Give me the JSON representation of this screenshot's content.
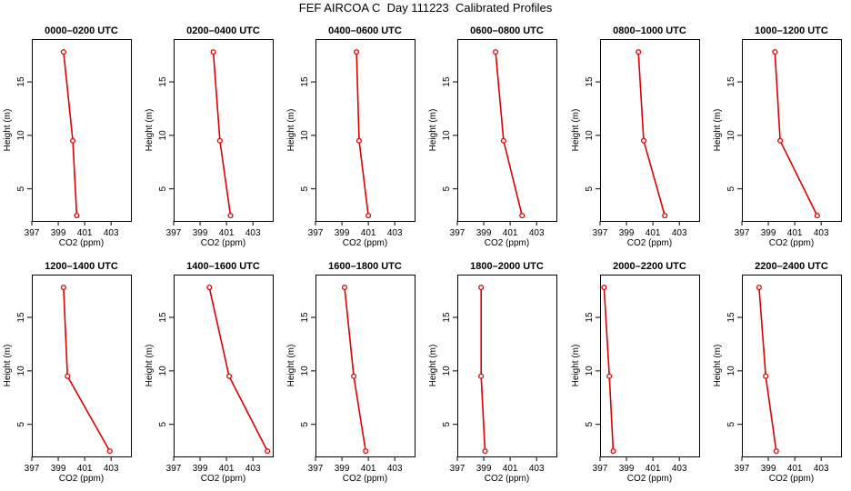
{
  "title": "FEF AIRCOA C  Day 111223  Calibrated Profiles",
  "colors": {
    "profile": "#dd0000",
    "axis": "#000000"
  },
  "chart_data": [
    {
      "type": "line",
      "title": "0000–0200 UTC",
      "xlabel": "CO2 (ppm)",
      "ylabel": "Height (m)",
      "xlim": [
        397,
        404.5
      ],
      "ylim": [
        2,
        19
      ],
      "xticks": [
        397,
        399,
        401,
        403
      ],
      "yticks": [
        5,
        10,
        15
      ],
      "series": [
        {
          "x": [
            400.4,
            400.1,
            399.4
          ],
          "y": [
            2.5,
            9.5,
            17.8
          ]
        }
      ]
    },
    {
      "type": "line",
      "title": "0200–0400 UTC",
      "xlabel": "CO2 (ppm)",
      "ylabel": "Height (m)",
      "xlim": [
        397,
        404.5
      ],
      "ylim": [
        2,
        19
      ],
      "xticks": [
        397,
        399,
        401,
        403
      ],
      "yticks": [
        5,
        10,
        15
      ],
      "series": [
        {
          "x": [
            401.3,
            400.5,
            400.0
          ],
          "y": [
            2.5,
            9.5,
            17.8
          ]
        }
      ]
    },
    {
      "type": "line",
      "title": "0400–0600 UTC",
      "xlabel": "CO2 (ppm)",
      "ylabel": "Height (m)",
      "xlim": [
        397,
        404.5
      ],
      "ylim": [
        2,
        19
      ],
      "xticks": [
        397,
        399,
        401,
        403
      ],
      "yticks": [
        5,
        10,
        15
      ],
      "series": [
        {
          "x": [
            401.0,
            400.3,
            400.1
          ],
          "y": [
            2.5,
            9.5,
            17.8
          ]
        }
      ]
    },
    {
      "type": "line",
      "title": "0600–0800 UTC",
      "xlabel": "CO2 (ppm)",
      "ylabel": "Height (m)",
      "xlim": [
        397,
        404.5
      ],
      "ylim": [
        2,
        19
      ],
      "xticks": [
        397,
        399,
        401,
        403
      ],
      "yticks": [
        5,
        10,
        15
      ],
      "series": [
        {
          "x": [
            401.9,
            400.5,
            399.9
          ],
          "y": [
            2.5,
            9.5,
            17.8
          ]
        }
      ]
    },
    {
      "type": "line",
      "title": "0800–1000 UTC",
      "xlabel": "CO2 (ppm)",
      "ylabel": "Height (m)",
      "xlim": [
        397,
        404.5
      ],
      "ylim": [
        2,
        19
      ],
      "xticks": [
        397,
        399,
        401,
        403
      ],
      "yticks": [
        5,
        10,
        15
      ],
      "series": [
        {
          "x": [
            401.9,
            400.3,
            399.9
          ],
          "y": [
            2.5,
            9.5,
            17.8
          ]
        }
      ]
    },
    {
      "type": "line",
      "title": "1000–1200 UTC",
      "xlabel": "CO2 (ppm)",
      "ylabel": "Height (m)",
      "xlim": [
        397,
        404.5
      ],
      "ylim": [
        2,
        19
      ],
      "xticks": [
        397,
        399,
        401,
        403
      ],
      "yticks": [
        5,
        10,
        15
      ],
      "series": [
        {
          "x": [
            402.7,
            399.9,
            399.5
          ],
          "y": [
            2.5,
            9.5,
            17.8
          ]
        }
      ]
    },
    {
      "type": "line",
      "title": "1200–1400 UTC",
      "xlabel": "CO2 (ppm)",
      "ylabel": "Height (m)",
      "xlim": [
        397,
        404.5
      ],
      "ylim": [
        2,
        19
      ],
      "xticks": [
        397,
        399,
        401,
        403
      ],
      "yticks": [
        5,
        10,
        15
      ],
      "series": [
        {
          "x": [
            402.9,
            399.7,
            399.4
          ],
          "y": [
            2.5,
            9.5,
            17.8
          ]
        }
      ]
    },
    {
      "type": "line",
      "title": "1400–1600 UTC",
      "xlabel": "CO2 (ppm)",
      "ylabel": "Height (m)",
      "xlim": [
        397,
        404.5
      ],
      "ylim": [
        2,
        19
      ],
      "xticks": [
        397,
        399,
        401,
        403
      ],
      "yticks": [
        5,
        10,
        15
      ],
      "series": [
        {
          "x": [
            404.1,
            401.2,
            399.7
          ],
          "y": [
            2.5,
            9.5,
            17.8
          ]
        }
      ]
    },
    {
      "type": "line",
      "title": "1600–1800 UTC",
      "xlabel": "CO2 (ppm)",
      "ylabel": "Height (m)",
      "xlim": [
        397,
        404.5
      ],
      "ylim": [
        2,
        19
      ],
      "xticks": [
        397,
        399,
        401,
        403
      ],
      "yticks": [
        5,
        10,
        15
      ],
      "series": [
        {
          "x": [
            400.8,
            399.9,
            399.2
          ],
          "y": [
            2.5,
            9.5,
            17.8
          ]
        }
      ]
    },
    {
      "type": "line",
      "title": "1800–2000 UTC",
      "xlabel": "CO2 (ppm)",
      "ylabel": "Height (m)",
      "xlim": [
        397,
        404.5
      ],
      "ylim": [
        2,
        19
      ],
      "xticks": [
        397,
        399,
        401,
        403
      ],
      "yticks": [
        5,
        10,
        15
      ],
      "series": [
        {
          "x": [
            399.1,
            398.8,
            398.8
          ],
          "y": [
            2.5,
            9.5,
            17.8
          ]
        }
      ]
    },
    {
      "type": "line",
      "title": "2000–2200 UTC",
      "xlabel": "CO2 (ppm)",
      "ylabel": "Height (m)",
      "xlim": [
        397,
        404.5
      ],
      "ylim": [
        2,
        19
      ],
      "xticks": [
        397,
        399,
        401,
        403
      ],
      "yticks": [
        5,
        10,
        15
      ],
      "series": [
        {
          "x": [
            398.0,
            397.7,
            397.3
          ],
          "y": [
            2.5,
            9.5,
            17.8
          ]
        }
      ]
    },
    {
      "type": "line",
      "title": "2200–2400 UTC",
      "xlabel": "CO2 (ppm)",
      "ylabel": "Height (m)",
      "xlim": [
        397,
        404.5
      ],
      "ylim": [
        2,
        19
      ],
      "xticks": [
        397,
        399,
        401,
        403
      ],
      "yticks": [
        5,
        10,
        15
      ],
      "series": [
        {
          "x": [
            399.6,
            398.8,
            398.3
          ],
          "y": [
            2.5,
            9.5,
            17.8
          ]
        }
      ]
    }
  ]
}
